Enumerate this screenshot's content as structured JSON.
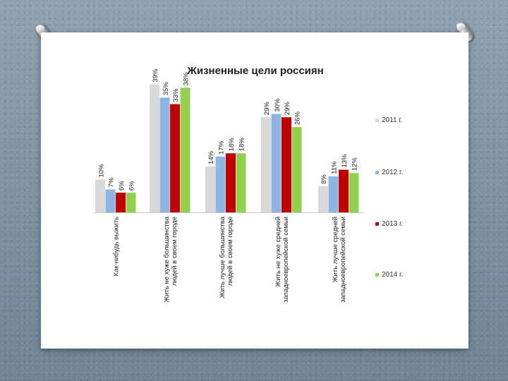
{
  "chart_data": {
    "type": "bar",
    "title": "Жизненные цели россиян",
    "xlabel": "",
    "ylabel": "",
    "ylim": [
      0,
      42
    ],
    "grid": false,
    "legend_position": "right",
    "categories": [
      [
        "Как-нибудь выжить"
      ],
      [
        "Жить не хуже большинства",
        "людей в своем городе"
      ],
      [
        "Жить лучше большинства",
        "людей в своем городе"
      ],
      [
        "Жить не хуже средней",
        "западноевропейской семьи"
      ],
      [
        "Жить лучше средней",
        "западноевропейской семьи"
      ]
    ],
    "series": [
      {
        "name": "2011 г.",
        "color": "#d9d9d9",
        "values": [
          10,
          39,
          14,
          29,
          8
        ]
      },
      {
        "name": "2012 г.",
        "color": "#8db4e2",
        "values": [
          7,
          35,
          17,
          30,
          11
        ]
      },
      {
        "name": "2013 г.",
        "color": "#c00000",
        "values": [
          6,
          33,
          18,
          29,
          13
        ]
      },
      {
        "name": "2014 г.",
        "color": "#92d050",
        "values": [
          6,
          38,
          18,
          26,
          12
        ]
      }
    ],
    "data_labels": [
      [
        "10%",
        "39%",
        "14%",
        "29%",
        "8%"
      ],
      [
        "7%",
        "35%",
        "17%",
        "30%",
        "11%"
      ],
      [
        "6%",
        "33%",
        "18%",
        "29%",
        "13%"
      ],
      [
        "6%",
        "38%",
        "18%",
        "26%",
        "12%"
      ]
    ]
  }
}
